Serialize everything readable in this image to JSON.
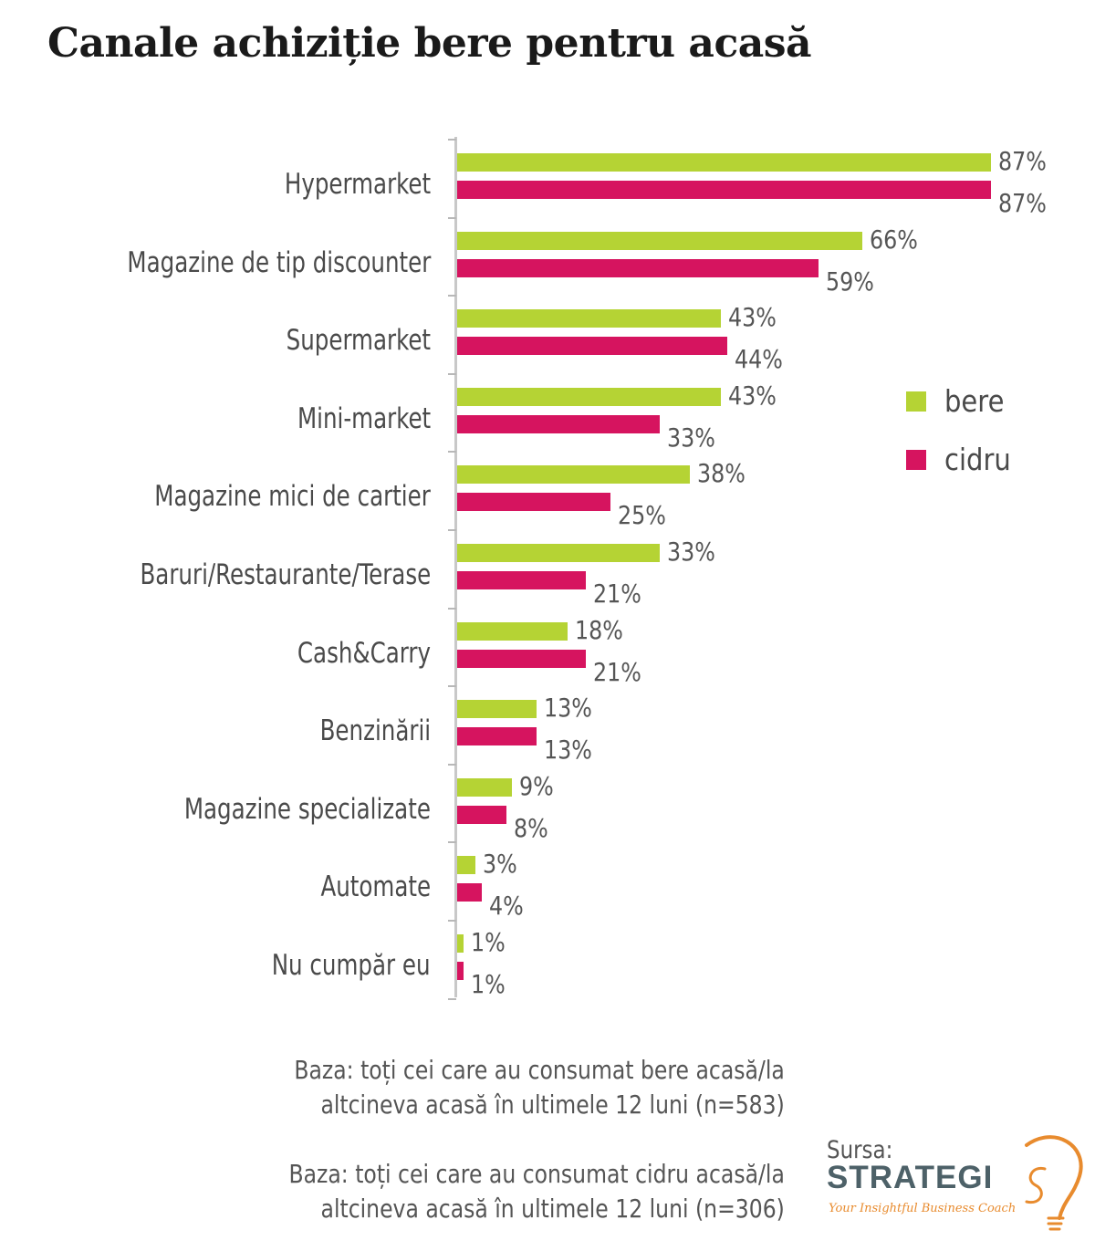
{
  "title": "Canale achiziție bere pentru acasă",
  "legend": [
    {
      "label": "bere",
      "color": "#b5d334"
    },
    {
      "label": "cidru",
      "color": "#d6145f"
    }
  ],
  "rows": [
    {
      "label": "Hypermarket",
      "bere": 87,
      "bere_label": "87%",
      "cidru": 87,
      "cidru_label": "87%"
    },
    {
      "label": "Magazine de tip discounter",
      "bere": 66,
      "bere_label": "66%",
      "cidru": 59,
      "cidru_label": "59%"
    },
    {
      "label": "Supermarket",
      "bere": 43,
      "bere_label": "43%",
      "cidru": 44,
      "cidru_label": "44%"
    },
    {
      "label": "Mini-market",
      "bere": 43,
      "bere_label": "43%",
      "cidru": 33,
      "cidru_label": "33%"
    },
    {
      "label": "Magazine mici de cartier",
      "bere": 38,
      "bere_label": "38%",
      "cidru": 25,
      "cidru_label": "25%"
    },
    {
      "label": "Baruri/Restaurante/Terase",
      "bere": 33,
      "bere_label": "33%",
      "cidru": 21,
      "cidru_label": "21%"
    },
    {
      "label": "Cash&Carry",
      "bere": 18,
      "bere_label": "18%",
      "cidru": 21,
      "cidru_label": "21%"
    },
    {
      "label": "Benzinării",
      "bere": 13,
      "bere_label": "13%",
      "cidru": 13,
      "cidru_label": "13%"
    },
    {
      "label": "Magazine specializate",
      "bere": 9,
      "bere_label": "9%",
      "cidru": 8,
      "cidru_label": "8%"
    },
    {
      "label": "Automate",
      "bere": 3,
      "bere_label": "3%",
      "cidru": 4,
      "cidru_label": "4%"
    },
    {
      "label": "Nu cumpăr eu",
      "bere": 1,
      "bere_label": "1%",
      "cidru": 1,
      "cidru_label": "1%"
    }
  ],
  "footnotes": {
    "bere_line1": "Baza: toți cei care au consumat bere acasă/la",
    "bere_line2": "altcineva acasă în ultimele 12 luni (n=583)",
    "cidru_line1": "Baza: toți cei care au consumat cidru acasă/la",
    "cidru_line2": "altcineva acasă în ultimele 12 luni (n=306)"
  },
  "source": {
    "label": "Sursa:",
    "brand": "STRATEGI",
    "tagline": "Your Insightful Business Coach"
  },
  "chart_data": {
    "type": "bar",
    "orientation": "horizontal",
    "title": "Canale achiziție bere pentru acasă",
    "xlabel": "",
    "ylabel": "",
    "categories": [
      "Hypermarket",
      "Magazine de tip discounter",
      "Supermarket",
      "Mini-market",
      "Magazine mici de cartier",
      "Baruri/Restaurante/Terase",
      "Cash&Carry",
      "Benzinării",
      "Magazine specializate",
      "Automate",
      "Nu cumpăr eu"
    ],
    "series": [
      {
        "name": "bere",
        "color": "#b5d334",
        "values": [
          87,
          66,
          43,
          43,
          38,
          33,
          18,
          13,
          9,
          3,
          1
        ]
      },
      {
        "name": "cidru",
        "color": "#d6145f",
        "values": [
          87,
          59,
          44,
          33,
          25,
          21,
          21,
          13,
          8,
          4,
          1
        ]
      }
    ],
    "unit": "%",
    "xlim": [
      0,
      100
    ],
    "grid": false,
    "data_labels": true,
    "legend_position": "right"
  }
}
